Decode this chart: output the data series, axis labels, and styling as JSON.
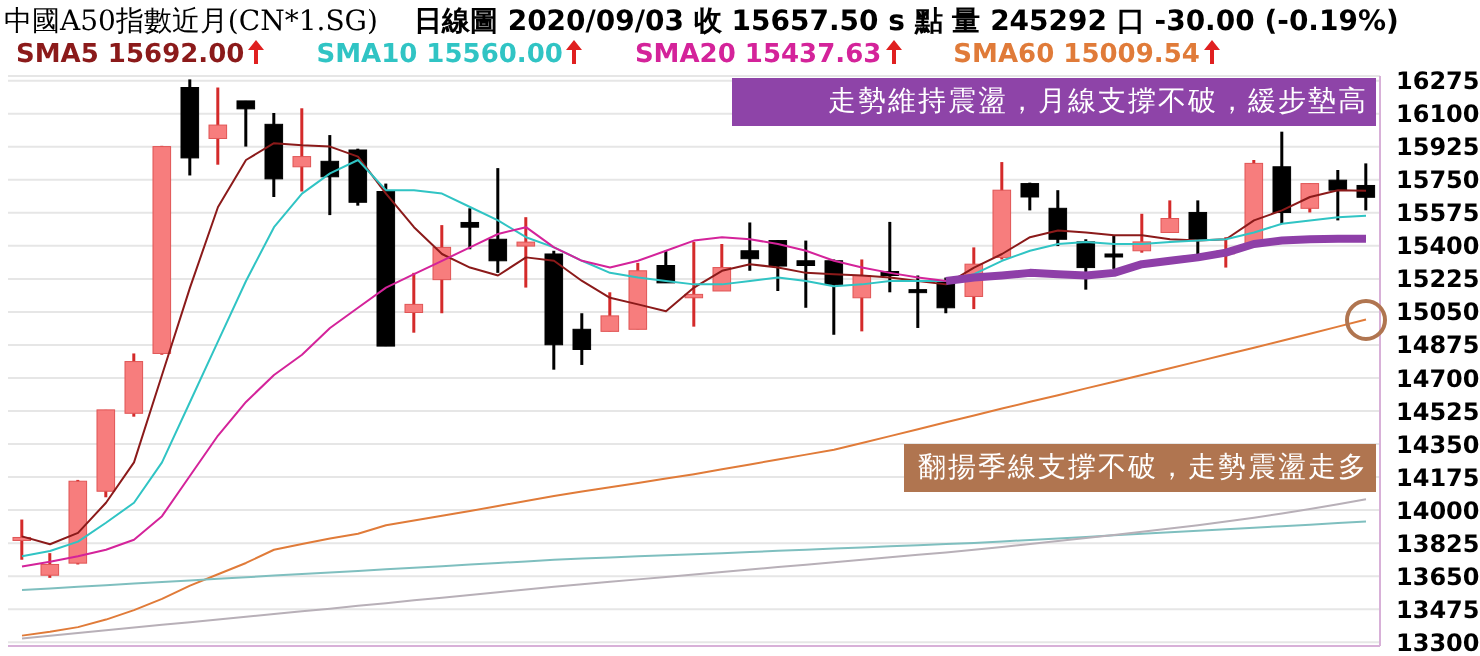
{
  "chart_data": {
    "type": "candlestick",
    "title": "中國A50指數近月(CN*1.SG)",
    "subtitle": "日線圖  2020/09/03  收 15657.50 s 點  量 245292 口  -30.00 (-0.19%)",
    "categories": [
      null,
      null,
      null,
      null,
      null,
      null,
      null,
      null,
      null,
      null,
      null,
      null,
      null,
      null,
      null,
      null,
      null,
      null,
      null,
      null,
      null,
      null,
      null,
      null,
      null,
      null,
      null,
      null,
      null,
      null,
      null,
      null,
      null,
      null,
      null,
      null,
      null,
      null,
      null,
      null,
      null,
      null,
      null,
      null,
      null,
      null,
      null,
      null,
      null
    ],
    "ohlc": [
      [
        13845,
        13950,
        13737,
        13855
      ],
      [
        13655,
        13772,
        13641,
        13712
      ],
      [
        13719,
        14160,
        13712,
        14153
      ],
      [
        14100,
        14531,
        14068,
        14531
      ],
      [
        14513,
        14830,
        14495,
        14787
      ],
      [
        14830,
        15930,
        14823,
        15926
      ],
      [
        16239,
        16282,
        15773,
        15866
      ],
      [
        15969,
        16239,
        15830,
        16040
      ],
      [
        16168,
        16168,
        15926,
        16126
      ],
      [
        16044,
        16104,
        15659,
        15755
      ],
      [
        15819,
        16129,
        15688,
        15873
      ],
      [
        15848,
        15987,
        15563,
        15766
      ],
      [
        15908,
        15915,
        15613,
        15631
      ],
      [
        15688,
        15730,
        14869,
        14869
      ],
      [
        15047,
        15257,
        14940,
        15090
      ],
      [
        15221,
        15510,
        15043,
        15392
      ],
      [
        15524,
        15599,
        15382,
        15499
      ],
      [
        15435,
        15812,
        15257,
        15321
      ],
      [
        15399,
        15552,
        15179,
        15420
      ],
      [
        15357,
        15374,
        14744,
        14876
      ],
      [
        14958,
        15043,
        14769,
        14851
      ],
      [
        14947,
        15154,
        14947,
        15029
      ],
      [
        14958,
        15310,
        14958,
        15268
      ],
      [
        15296,
        15374,
        15204,
        15204
      ],
      [
        15125,
        15421,
        14972,
        15143
      ],
      [
        15161,
        15410,
        15161,
        15285
      ],
      [
        15374,
        15524,
        15268,
        15332
      ],
      [
        15428,
        15430,
        15161,
        15293
      ],
      [
        15321,
        15428,
        15072,
        15296
      ],
      [
        15321,
        15328,
        14929,
        15196
      ],
      [
        15125,
        15328,
        14947,
        15243
      ],
      [
        15264,
        15527,
        15154,
        15243
      ],
      [
        15168,
        15243,
        14965,
        15154
      ],
      [
        15214,
        15232,
        15043,
        15072
      ],
      [
        15132,
        15392,
        15065,
        15303
      ],
      [
        15339,
        15844,
        15328,
        15695
      ],
      [
        15730,
        15735,
        15588,
        15659
      ],
      [
        15599,
        15695,
        15399,
        15435
      ],
      [
        15421,
        15435,
        15168,
        15285
      ],
      [
        15357,
        15456,
        15278,
        15350
      ],
      [
        15374,
        15570,
        15364,
        15421
      ],
      [
        15471,
        15641,
        15471,
        15545
      ],
      [
        15577,
        15641,
        15339,
        15435
      ],
      [
        15364,
        15446,
        15285,
        15374
      ],
      [
        15410,
        15855,
        15410,
        15837
      ],
      [
        15819,
        16005,
        15517,
        15577
      ],
      [
        15599,
        15730,
        15577,
        15730
      ],
      [
        15748,
        15802,
        15535,
        15695
      ],
      [
        15720,
        15837,
        15588,
        15657.5
      ]
    ],
    "series": [
      {
        "name": "SMA5 15692.00",
        "type": "line",
        "color": "#8b1a1a",
        "values": [
          13861,
          13819,
          13879,
          14039,
          14253,
          14716,
          15179,
          15606,
          15855,
          15944,
          15933,
          15926,
          15873,
          15677,
          15499,
          15357,
          15285,
          15243,
          15339,
          15321,
          15214,
          15125,
          15090,
          15054,
          15179,
          15268,
          15303,
          15285,
          15257,
          15250,
          15243,
          15232,
          15214,
          15196,
          15285,
          15357,
          15446,
          15481,
          15471,
          15456,
          15456,
          15435,
          15428,
          15435,
          15535,
          15588,
          15659,
          15695,
          15692
        ]
      },
      {
        "name": "SMA10 15560.00",
        "type": "line",
        "color": "#30c4c4",
        "values": [
          13755,
          13783,
          13833,
          13933,
          14039,
          14253,
          14573,
          14894,
          15214,
          15499,
          15677,
          15784,
          15855,
          15695,
          15695,
          15677,
          15606,
          15535,
          15446,
          15392,
          15321,
          15257,
          15232,
          15214,
          15196,
          15196,
          15214,
          15232,
          15214,
          15186,
          15196,
          15214,
          15214,
          15214,
          15250,
          15321,
          15374,
          15410,
          15421,
          15410,
          15410,
          15421,
          15428,
          15435,
          15471,
          15517,
          15535,
          15552,
          15560
        ]
      },
      {
        "name": "SMA20 15437.63",
        "type": "line",
        "color": "#d4239a",
        "values": [
          13701,
          13726,
          13755,
          13790,
          13843,
          13968,
          14182,
          14395,
          14573,
          14716,
          14823,
          14965,
          15072,
          15179,
          15250,
          15321,
          15392,
          15463,
          15499,
          15392,
          15321,
          15285,
          15321,
          15374,
          15428,
          15446,
          15435,
          15410,
          15374,
          15321,
          15285,
          15257,
          15232,
          15214,
          null,
          null,
          null,
          null,
          null,
          null,
          null,
          null,
          null,
          null,
          null,
          null,
          null,
          null,
          null
        ]
      },
      {
        "name": "SMA60 15009.54",
        "type": "line",
        "color": "#e07b39",
        "values": [
          13335,
          13355,
          13380,
          13420,
          13470,
          13530,
          13600,
          13660,
          13720,
          13790,
          13820,
          13850,
          13875,
          13920,
          13945,
          13970,
          13995,
          14022,
          14048,
          14075,
          14098,
          14121,
          14144,
          14167,
          14190,
          14216,
          14242,
          14268,
          14294,
          14320,
          14356,
          14392,
          14428,
          14465,
          14501,
          14538,
          14574,
          14609,
          14645,
          14680,
          14716,
          14752,
          14788,
          14824,
          14860,
          14897,
          14934,
          14972,
          15009.54
        ]
      },
      {
        "type": "line",
        "color": "#7fbfbf",
        "values": [
          13577,
          13585,
          13594,
          13602,
          13611,
          13619,
          13627,
          13636,
          13644,
          13653,
          13661,
          13669,
          13678,
          13686,
          13695,
          13703,
          13712,
          13720,
          13728,
          13737,
          13743,
          13749,
          13755,
          13761,
          13766,
          13772,
          13778,
          13784,
          13790,
          13796,
          13802,
          13808,
          13814,
          13820,
          13826,
          13834,
          13842,
          13850,
          13858,
          13867,
          13875,
          13883,
          13891,
          13899,
          13907,
          13915,
          13923,
          13932,
          13940
        ]
      },
      {
        "type": "line",
        "color": "#b8b0b8",
        "values": [
          13320,
          13334,
          13349,
          13363,
          13378,
          13392,
          13406,
          13421,
          13435,
          13450,
          13464,
          13478,
          13493,
          13507,
          13522,
          13536,
          13550,
          13565,
          13579,
          13594,
          13607,
          13620,
          13633,
          13646,
          13659,
          13672,
          13685,
          13698,
          13711,
          13724,
          13737,
          13750,
          13763,
          13776,
          13790,
          13805,
          13820,
          13836,
          13852,
          13868,
          13885,
          13902,
          13920,
          13940,
          13960,
          13982,
          14006,
          14031,
          14057
        ]
      },
      {
        "type": "line",
        "color": "#8e3fa8",
        "values": [
          null,
          null,
          null,
          null,
          null,
          null,
          null,
          null,
          null,
          null,
          null,
          null,
          null,
          null,
          null,
          null,
          null,
          null,
          null,
          null,
          null,
          null,
          null,
          null,
          null,
          null,
          null,
          null,
          null,
          null,
          null,
          null,
          null,
          15214,
          15232,
          15243,
          15257,
          15250,
          15243,
          15257,
          15303,
          15321,
          15339,
          15364,
          15410,
          15428,
          15435,
          15438,
          15437.63
        ]
      }
    ],
    "ylim": [
      13280,
      16300
    ],
    "yticks": [
      13300,
      13475,
      13650,
      13825,
      14000,
      14175,
      14350,
      14525,
      14700,
      14875,
      15050,
      15225,
      15400,
      15575,
      15750,
      15925,
      16100,
      16275
    ],
    "grid": "y",
    "legend": "top left",
    "tick_labels": "y",
    "annotations": [
      "走勢維持震盪，月線支撐不破，緩步墊高",
      "翻揚季線支撐不破，走勢震盪走多"
    ]
  }
}
